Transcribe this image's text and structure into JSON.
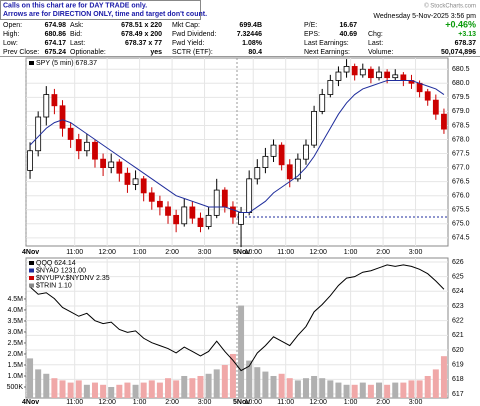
{
  "header": {
    "banner": [
      "Calls on this chart are for DAY TRADE only.",
      "Arrows are for DIRECTION ONLY, time and target don't count."
    ],
    "date": "Wednesday 5-Nov-2025 3:56 pm",
    "copyright": "© StockCharts.com",
    "columns": [
      [
        {
          "label": "Open:",
          "value": "674.98"
        },
        {
          "label": "High:",
          "value": "680.86"
        },
        {
          "label": "Low:",
          "value": "674.17"
        },
        {
          "label": "Prev Close:",
          "value": "675.24"
        }
      ],
      [
        {
          "label": "Ask:",
          "value": "678.51 x 220"
        },
        {
          "label": "Bid:",
          "value": "678.49 x 200"
        },
        {
          "label": "Last:",
          "value": "678.37 x 77"
        },
        {
          "label": "Optionable:",
          "value": "yes"
        }
      ],
      [
        {
          "label": "Mkt Cap:",
          "value": "699.4B"
        },
        {
          "label": "Fwd Dividend:",
          "value": "7.32446"
        },
        {
          "label": "Fwd Yield:",
          "value": "1.08%"
        },
        {
          "label": "SCTR (ETF):",
          "value": "80.4"
        }
      ],
      [
        {
          "label": "P/E:",
          "value": "16.67"
        },
        {
          "label": "EPS:",
          "value": "40.69"
        },
        {
          "label": "Last Earnings:"
        },
        {
          "label": "Next Earnings:"
        }
      ],
      [
        {
          "value": "+0.46%"
        },
        {
          "label": "Chg:",
          "value": "+3.13"
        },
        {
          "label": "Last:",
          "value": "678.37"
        },
        {
          "label": "Volume:",
          "value": "50,074,896"
        }
      ]
    ]
  },
  "chart_data": [
    {
      "type": "candlestick",
      "title": "SPY (5 min) 678.37",
      "up_color": "#000000",
      "down_color": "#cc0000",
      "candles": [
        [
          676.9,
          677.9,
          676.6,
          677.6
        ],
        [
          677.6,
          679.0,
          677.4,
          678.8
        ],
        [
          678.8,
          679.9,
          678.5,
          679.6
        ],
        [
          679.6,
          679.8,
          678.9,
          679.2
        ],
        [
          679.2,
          679.4,
          678.1,
          678.4
        ],
        [
          678.4,
          678.6,
          677.7,
          678.0
        ],
        [
          678.0,
          678.2,
          677.3,
          677.6
        ],
        [
          677.6,
          678.2,
          677.4,
          677.9
        ],
        [
          677.9,
          678.0,
          677.0,
          677.3
        ],
        [
          677.3,
          677.5,
          676.7,
          677.0
        ],
        [
          677.0,
          677.5,
          676.8,
          677.2
        ],
        [
          677.2,
          677.3,
          676.5,
          676.8
        ],
        [
          676.8,
          677.0,
          676.1,
          676.4
        ],
        [
          676.4,
          676.9,
          676.2,
          676.6
        ],
        [
          676.6,
          676.7,
          675.8,
          676.1
        ],
        [
          676.1,
          676.3,
          675.5,
          675.8
        ],
        [
          675.8,
          676.0,
          675.3,
          675.6
        ],
        [
          675.6,
          675.8,
          675.0,
          675.3
        ],
        [
          675.3,
          675.5,
          674.7,
          675.0
        ],
        [
          675.0,
          675.9,
          674.9,
          675.6
        ],
        [
          675.6,
          675.8,
          675.0,
          675.2
        ],
        [
          675.2,
          675.4,
          674.7,
          674.9
        ],
        [
          674.9,
          675.6,
          674.8,
          675.3
        ],
        [
          675.3,
          676.6,
          675.2,
          676.2
        ],
        [
          676.2,
          676.3,
          675.4,
          675.6
        ],
        [
          675.6,
          675.8,
          675.0,
          675.24
        ],
        [
          674.98,
          675.6,
          674.17,
          675.4
        ],
        [
          675.4,
          676.9,
          675.3,
          676.6
        ],
        [
          676.6,
          677.3,
          676.4,
          677.0
        ],
        [
          677.0,
          677.7,
          676.8,
          677.4
        ],
        [
          677.4,
          678.0,
          677.2,
          677.8
        ],
        [
          677.8,
          677.9,
          676.9,
          677.1
        ],
        [
          677.1,
          677.3,
          676.3,
          676.6
        ],
        [
          676.6,
          677.5,
          676.5,
          677.3
        ],
        [
          677.3,
          678.0,
          677.1,
          677.8
        ],
        [
          677.8,
          679.2,
          677.7,
          679.0
        ],
        [
          679.0,
          679.8,
          678.9,
          679.6
        ],
        [
          679.6,
          680.3,
          679.5,
          680.1
        ],
        [
          680.1,
          680.6,
          679.9,
          680.4
        ],
        [
          680.4,
          680.86,
          680.2,
          680.6
        ],
        [
          680.6,
          680.7,
          680.1,
          680.3
        ],
        [
          680.3,
          680.7,
          680.2,
          680.5
        ],
        [
          680.5,
          680.6,
          680.0,
          680.2
        ],
        [
          680.2,
          680.6,
          680.1,
          680.4
        ],
        [
          680.4,
          680.5,
          680.0,
          680.2
        ],
        [
          680.2,
          680.5,
          680.1,
          680.3
        ],
        [
          680.3,
          680.4,
          679.9,
          680.1
        ],
        [
          680.1,
          680.3,
          679.8,
          680.0
        ],
        [
          680.0,
          680.1,
          679.5,
          679.7
        ],
        [
          679.7,
          679.8,
          679.2,
          679.4
        ],
        [
          679.4,
          679.6,
          678.7,
          678.9
        ],
        [
          678.9,
          679.1,
          678.2,
          678.37
        ]
      ],
      "overlays": [
        {
          "color": "#1f2d9c",
          "values": [
            677.8,
            678.1,
            678.4,
            678.6,
            678.7,
            678.6,
            678.4,
            678.2,
            678.0,
            677.8,
            677.6,
            677.4,
            677.2,
            677.0,
            676.8,
            676.6,
            676.4,
            676.2,
            676.0,
            675.9,
            675.8,
            675.7,
            675.6,
            675.6,
            675.6,
            675.5,
            675.4,
            675.4,
            675.6,
            675.8,
            676.1,
            676.3,
            676.5,
            676.7,
            677.0,
            677.4,
            677.9,
            678.4,
            678.9,
            679.3,
            679.6,
            679.8,
            679.9,
            680.0,
            680.1,
            680.1,
            680.1,
            680.1,
            680.0,
            679.9,
            679.8,
            679.6
          ]
        }
      ],
      "reference_line": 675.24,
      "ylim": [
        674.21,
        680.9
      ],
      "yticks": [
        674.5,
        {
          "value": 675,
          "label": "675.0"
        },
        675.5,
        {
          "value": 676,
          "label": "676.0"
        },
        676.5,
        {
          "value": 677,
          "label": "677.0"
        },
        677.5,
        {
          "value": 678,
          "label": "678.0"
        },
        678.5,
        {
          "value": 679,
          "label": "679.0"
        },
        679.5,
        {
          "value": 680,
          "label": "680.0"
        },
        680.5
      ],
      "xlim": [
        0,
        52
      ],
      "xticks": [
        {
          "value": 0,
          "label": "4Nov"
        },
        {
          "value": 6,
          "label": "11:00"
        },
        {
          "value": 10,
          "label": "12:00"
        },
        {
          "value": 14,
          "label": "1:00"
        },
        {
          "value": 18,
          "label": "2:00"
        },
        {
          "value": 22,
          "label": "3:00"
        },
        {
          "value": 26,
          "label": "5Nov"
        },
        {
          "value": 28,
          "label": "10:00"
        },
        {
          "value": 32,
          "label": "11:00"
        },
        {
          "value": 36,
          "label": "12:00"
        },
        {
          "value": 40,
          "label": "1:00"
        },
        {
          "value": 44,
          "label": "2:00"
        },
        {
          "value": 48,
          "label": "3:00"
        }
      ],
      "grid": true
    },
    {
      "type": "line",
      "series": [
        {
          "name": "QQQ 624.14",
          "color": "#000000",
          "values": [
            624.3,
            623.8,
            623.9,
            623.5,
            622.9,
            622.6,
            622.3,
            622.5,
            622.0,
            621.8,
            621.9,
            621.4,
            621.2,
            621.3,
            620.8,
            620.5,
            620.3,
            620.1,
            619.8,
            620.2,
            619.9,
            619.6,
            619.9,
            620.6,
            619.9,
            619.3,
            618.6,
            618.9,
            619.8,
            620.3,
            620.9,
            620.6,
            620.3,
            621.0,
            621.6,
            622.6,
            623.1,
            623.7,
            624.4,
            624.9,
            625.0,
            625.3,
            625.4,
            625.6,
            625.8,
            625.7,
            625.8,
            625.7,
            625.5,
            625.2,
            624.7,
            624.14
          ]
        }
      ],
      "legend_extra": [
        {
          "name": "$NYAD 1231.00",
          "color": "#1f2d9c"
        },
        {
          "name": "$NYUPV:$NYDNV 2.35",
          "color": "#cc0000"
        },
        {
          "name": "$TRIN 1.10",
          "color": "#888888"
        }
      ],
      "volume": {
        "axis": "y2",
        "up_color": "#b0b0b0",
        "down_color": "#f0a8a8",
        "values": [
          1800000,
          1300000,
          1100000,
          900000,
          800000,
          700000,
          800000,
          600000,
          700000,
          600000,
          500000,
          600000,
          700000,
          600000,
          700000,
          800000,
          700000,
          900000,
          800000,
          1000000,
          900000,
          1000000,
          1100000,
          1300000,
          1500000,
          2000000,
          4200000,
          1700000,
          1400000,
          1200000,
          1000000,
          1100000,
          900000,
          800000,
          900000,
          1000000,
          900000,
          800000,
          700000,
          600000,
          600000,
          700000,
          600000,
          700000,
          600000,
          700000,
          700000,
          800000,
          800000,
          1000000,
          1300000,
          1900000
        ]
      },
      "ylim": [
        616.73,
        626.27
      ],
      "yticks": [
        617,
        618,
        619,
        620,
        621,
        622,
        623,
        624,
        625,
        626
      ],
      "y2lim": [
        0,
        6360000
      ],
      "y2ticks": [
        {
          "value": 500000,
          "label": "500K"
        },
        {
          "value": 1000000,
          "label": "1.0M"
        },
        {
          "value": 1500000,
          "label": "1.5M"
        },
        {
          "value": 2000000,
          "label": "2.0M"
        },
        {
          "value": 2500000,
          "label": "2.5M"
        },
        {
          "value": 3000000,
          "label": "3.0M"
        },
        {
          "value": 3500000,
          "label": "3.5M"
        },
        {
          "value": 4000000,
          "label": "4.0M"
        },
        {
          "value": 4500000,
          "label": "4.5M"
        }
      ],
      "xlim": [
        0,
        52
      ],
      "xticks": [
        {
          "value": 0,
          "label": "4Nov"
        },
        {
          "value": 6,
          "label": "11:00"
        },
        {
          "value": 10,
          "label": "12:00"
        },
        {
          "value": 14,
          "label": "1:00"
        },
        {
          "value": 18,
          "label": "2:00"
        },
        {
          "value": 22,
          "label": "3:00"
        },
        {
          "value": 26,
          "label": "5Nov"
        },
        {
          "value": 28,
          "label": "10:00"
        },
        {
          "value": 32,
          "label": "11:00"
        },
        {
          "value": 36,
          "label": "12:00"
        },
        {
          "value": 40,
          "label": "1:00"
        },
        {
          "value": 44,
          "label": "2:00"
        },
        {
          "value": 48,
          "label": "3:00"
        }
      ],
      "grid": true
    }
  ]
}
